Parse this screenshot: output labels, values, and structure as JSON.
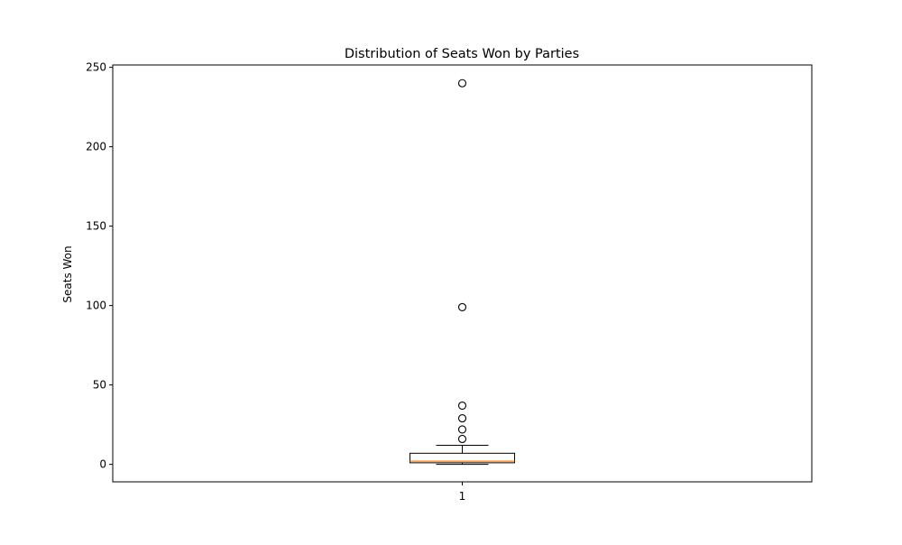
{
  "chart_data": {
    "type": "box",
    "title": "Distribution of Seats Won by Parties",
    "xlabel": "",
    "ylabel": "Seats Won",
    "categories": [
      "1"
    ],
    "ylim": [
      -11,
      251.5
    ],
    "yticks": [
      0,
      50,
      100,
      150,
      200,
      250
    ],
    "boxes": [
      {
        "category": "1",
        "whisker_low": 0,
        "q1": 1,
        "median": 2,
        "q3": 7,
        "whisker_high": 12,
        "outliers": [
          16,
          22,
          29,
          37,
          99,
          240
        ]
      }
    ],
    "colors": {
      "box": "#000000",
      "median": "#ff7f0e",
      "outlier_edge": "#000000"
    },
    "grid": false,
    "legend": false
  }
}
